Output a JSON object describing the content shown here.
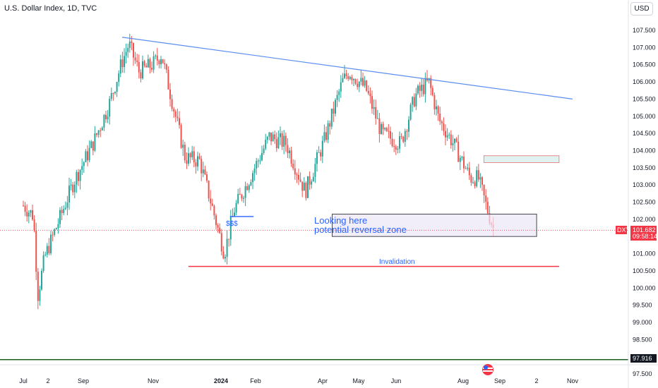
{
  "header": {
    "title": "U.S. Dollar Index, 1D, TVC",
    "currency_button": "USD"
  },
  "colors": {
    "up": "#26a69a",
    "down": "#ef5350",
    "trendline": "#5b8def",
    "invalidation": "#f23645",
    "zone_fill": "#ede7f6",
    "zone_border": "#434651",
    "resistance_fill": "#e0f2f1",
    "annotation": "#2962ff",
    "dark_line": "#1b5e20"
  },
  "annotations": {
    "zone_line1": "Looking here",
    "zone_line2": "potential reversal zone",
    "sss": "$$$",
    "invalidation": "Invalidation"
  },
  "price_tag": {
    "symbol": "DXY",
    "price": "101.682",
    "countdown": "09:58:14"
  },
  "bottom_tag": {
    "price": "97.916"
  },
  "chart_data": {
    "type": "candlestick",
    "title": "U.S. Dollar Index, 1D, TVC",
    "y_axis_labels": [
      "107.500",
      "107.000",
      "106.500",
      "106.000",
      "105.500",
      "105.000",
      "104.500",
      "104.000",
      "103.500",
      "103.000",
      "102.500",
      "102.000",
      "101.500",
      "101.000",
      "100.500",
      "100.000",
      "99.500",
      "99.000",
      "98.500",
      "98.000",
      "97.500"
    ],
    "x_axis_labels": [
      "Jul",
      "2",
      "Sep",
      "Nov",
      "2024",
      "Feb",
      "Apr",
      "May",
      "Jun",
      "Aug",
      "Sep",
      "2",
      "Nov"
    ],
    "x_axis_bold": [
      "2024"
    ],
    "ylim": [
      97.5,
      108.0
    ],
    "close_path": [
      [
        "2023-07-01",
        102.4
      ],
      [
        "2023-07-10",
        102.1
      ],
      [
        "2023-07-14",
        99.8
      ],
      [
        "2023-07-20",
        100.9
      ],
      [
        "2023-08-01",
        101.9
      ],
      [
        "2023-08-15",
        103.1
      ],
      [
        "2023-09-01",
        104.2
      ],
      [
        "2023-09-15",
        105.3
      ],
      [
        "2023-09-27",
        106.6
      ],
      [
        "2023-10-03",
        107.1
      ],
      [
        "2023-10-12",
        106.3
      ],
      [
        "2023-10-24",
        106.5
      ],
      [
        "2023-11-01",
        106.8
      ],
      [
        "2023-11-10",
        105.5
      ],
      [
        "2023-11-22",
        103.8
      ],
      [
        "2023-12-05",
        103.7
      ],
      [
        "2023-12-15",
        102.5
      ],
      [
        "2023-12-27",
        101.0
      ],
      [
        "2024-01-05",
        102.3
      ],
      [
        "2024-01-20",
        103.3
      ],
      [
        "2024-02-05",
        104.4
      ],
      [
        "2024-02-20",
        104.2
      ],
      [
        "2024-03-08",
        102.8
      ],
      [
        "2024-03-25",
        104.3
      ],
      [
        "2024-04-10",
        106.0
      ],
      [
        "2024-04-16",
        106.3
      ],
      [
        "2024-05-01",
        105.8
      ],
      [
        "2024-05-15",
        104.5
      ],
      [
        "2024-06-01",
        104.2
      ],
      [
        "2024-06-14",
        105.6
      ],
      [
        "2024-06-26",
        106.0
      ],
      [
        "2024-07-05",
        104.9
      ],
      [
        "2024-07-18",
        104.2
      ],
      [
        "2024-08-02",
        103.2
      ],
      [
        "2024-08-09",
        103.2
      ],
      [
        "2024-08-16",
        102.4
      ],
      [
        "2024-08-23",
        101.682
      ]
    ],
    "drawings": {
      "trendline": {
        "from": [
          "2023-09-27",
          107.3
        ],
        "to": [
          "2024-11-01",
          105.5
        ]
      },
      "reversal_zone": {
        "x": [
          "2024-04-01",
          "2024-09-30"
        ],
        "y": [
          101.5,
          102.15
        ]
      },
      "resistance_zone": {
        "x": [
          "2024-08-14",
          "2024-10-20"
        ],
        "y": [
          103.65,
          103.85
        ]
      },
      "invalidation_line": {
        "x": [
          "2023-11-25",
          "2024-10-20"
        ],
        "y": 100.63
      },
      "sss_line": {
        "x": [
          "2024-01-01",
          "2024-01-22"
        ],
        "y": 102.08
      }
    },
    "last_price": 101.682,
    "bottom_price_line": 97.916,
    "grid": false,
    "legend": "none"
  }
}
